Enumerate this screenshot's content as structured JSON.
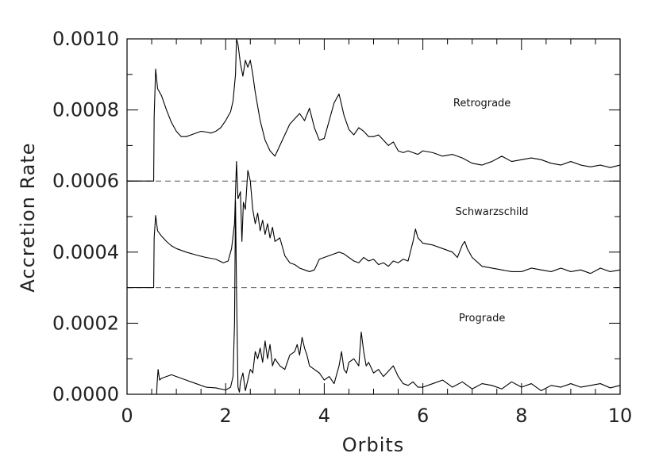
{
  "chart_data": {
    "type": "line",
    "title": "",
    "xlabel": "Orbits",
    "ylabel": "Accretion Rate",
    "xlim": [
      0,
      10
    ],
    "ylim": [
      0,
      0.001
    ],
    "x_ticks": [
      "0",
      "2",
      "4",
      "6",
      "8",
      "10"
    ],
    "y_ticks": [
      "0.0000",
      "0.0002",
      "0.0004",
      "0.0006",
      "0.0008",
      "0.0010"
    ],
    "grid": false,
    "legend": "none",
    "reference_lines": [
      {
        "y": 0.0006,
        "style": "dashed"
      },
      {
        "y": 0.0003,
        "style": "dashed"
      }
    ],
    "annotations": [
      {
        "text": "Retrograde",
        "x": 7.2,
        "y": 0.00081
      },
      {
        "text": "Schwarzschild",
        "x": 7.4,
        "y": 0.000505
      },
      {
        "text": "Prograde",
        "x": 7.2,
        "y": 0.000205
      }
    ],
    "series": [
      {
        "color": "#000000",
        "x": [
          0,
          0.54,
          0.55,
          0.58,
          0.62,
          0.7,
          0.8,
          0.9,
          1.0,
          1.1,
          1.2,
          1.3,
          1.4,
          1.5,
          1.6,
          1.7,
          1.8,
          1.9,
          2.0,
          2.1,
          2.15,
          2.2,
          2.22,
          2.25,
          2.3,
          2.35,
          2.4,
          2.45,
          2.5,
          2.55,
          2.6,
          2.7,
          2.8,
          2.9,
          3.0,
          3.1,
          3.2,
          3.3,
          3.4,
          3.5,
          3.6,
          3.7,
          3.8,
          3.9,
          4.0,
          4.1,
          4.2,
          4.3,
          4.4,
          4.5,
          4.6,
          4.7,
          4.8,
          4.9,
          5.0,
          5.1,
          5.2,
          5.3,
          5.4,
          5.5,
          5.6,
          5.7,
          5.8,
          5.9,
          6.0,
          6.2,
          6.4,
          6.6,
          6.8,
          7.0,
          7.2,
          7.4,
          7.6,
          7.8,
          8.0,
          8.2,
          8.4,
          8.6,
          8.8,
          9.0,
          9.2,
          9.4,
          9.6,
          9.8,
          10.0
        ],
        "y": [
          0.0006,
          0.0006,
          0.00078,
          0.000915,
          0.00086,
          0.00084,
          0.0008,
          0.000765,
          0.00074,
          0.000725,
          0.000725,
          0.00073,
          0.000735,
          0.00074,
          0.000738,
          0.000735,
          0.00074,
          0.00075,
          0.00077,
          0.000795,
          0.000825,
          0.0009,
          0.001,
          0.000985,
          0.00093,
          0.000895,
          0.00094,
          0.00092,
          0.00094,
          0.0009,
          0.00085,
          0.00077,
          0.000715,
          0.000685,
          0.00067,
          0.0007,
          0.00073,
          0.00076,
          0.000775,
          0.00079,
          0.00077,
          0.000805,
          0.00075,
          0.000715,
          0.00072,
          0.00077,
          0.00082,
          0.000845,
          0.000785,
          0.000745,
          0.00073,
          0.00075,
          0.00074,
          0.000725,
          0.000725,
          0.00073,
          0.000715,
          0.0007,
          0.00071,
          0.000685,
          0.00068,
          0.000685,
          0.00068,
          0.000675,
          0.000685,
          0.00068,
          0.00067,
          0.000675,
          0.000665,
          0.00065,
          0.000645,
          0.000655,
          0.00067,
          0.000655,
          0.00066,
          0.000665,
          0.00066,
          0.00065,
          0.000645,
          0.000655,
          0.000645,
          0.00064,
          0.000645,
          0.000638,
          0.000645
        ]
      },
      {
        "color": "#000000",
        "x": [
          0,
          0.54,
          0.55,
          0.58,
          0.62,
          0.7,
          0.8,
          0.9,
          1.0,
          1.2,
          1.4,
          1.6,
          1.8,
          1.95,
          2.05,
          2.12,
          2.18,
          2.22,
          2.25,
          2.3,
          2.33,
          2.36,
          2.4,
          2.45,
          2.5,
          2.55,
          2.6,
          2.65,
          2.7,
          2.75,
          2.8,
          2.85,
          2.9,
          2.95,
          3.0,
          3.1,
          3.2,
          3.3,
          3.4,
          3.5,
          3.6,
          3.7,
          3.8,
          3.9,
          4.0,
          4.1,
          4.2,
          4.3,
          4.4,
          4.5,
          4.6,
          4.7,
          4.8,
          4.9,
          5.0,
          5.1,
          5.2,
          5.3,
          5.4,
          5.5,
          5.6,
          5.7,
          5.8,
          5.85,
          5.9,
          6.0,
          6.2,
          6.4,
          6.6,
          6.7,
          6.8,
          6.85,
          6.9,
          7.0,
          7.2,
          7.4,
          7.6,
          7.8,
          8.0,
          8.2,
          8.4,
          8.6,
          8.8,
          9.0,
          9.2,
          9.4,
          9.6,
          9.8,
          10.0
        ],
        "y": [
          0.0003,
          0.0003,
          0.00044,
          0.000503,
          0.00046,
          0.000445,
          0.00043,
          0.000418,
          0.00041,
          0.0004,
          0.000392,
          0.000385,
          0.00038,
          0.00037,
          0.000375,
          0.00041,
          0.00048,
          0.000655,
          0.00055,
          0.00057,
          0.00043,
          0.00054,
          0.00052,
          0.00063,
          0.0006,
          0.00052,
          0.00048,
          0.00051,
          0.00046,
          0.00049,
          0.00045,
          0.00048,
          0.00044,
          0.00047,
          0.00043,
          0.00044,
          0.00039,
          0.00037,
          0.000365,
          0.000355,
          0.00035,
          0.000345,
          0.00035,
          0.00038,
          0.000385,
          0.00039,
          0.000395,
          0.0004,
          0.000395,
          0.000385,
          0.000375,
          0.00037,
          0.000385,
          0.000375,
          0.00038,
          0.000365,
          0.00037,
          0.00036,
          0.000375,
          0.00037,
          0.00038,
          0.000375,
          0.00043,
          0.000465,
          0.00044,
          0.000425,
          0.00042,
          0.00041,
          0.0004,
          0.000385,
          0.00042,
          0.00043,
          0.00041,
          0.000385,
          0.00036,
          0.000355,
          0.00035,
          0.000345,
          0.000345,
          0.000355,
          0.00035,
          0.000345,
          0.000355,
          0.000345,
          0.00035,
          0.00034,
          0.000355,
          0.000345,
          0.00035
        ]
      },
      {
        "color": "#000000",
        "x": [
          0,
          0.6,
          0.61,
          0.63,
          0.66,
          0.7,
          0.8,
          0.9,
          1.0,
          1.2,
          1.4,
          1.6,
          1.8,
          2.0,
          2.1,
          2.15,
          2.18,
          2.2,
          2.22,
          2.25,
          2.28,
          2.3,
          2.35,
          2.4,
          2.45,
          2.5,
          2.55,
          2.6,
          2.65,
          2.7,
          2.75,
          2.8,
          2.85,
          2.9,
          2.95,
          3.0,
          3.1,
          3.2,
          3.3,
          3.4,
          3.45,
          3.5,
          3.55,
          3.6,
          3.65,
          3.7,
          3.8,
          3.9,
          4.0,
          4.1,
          4.2,
          4.3,
          4.35,
          4.4,
          4.45,
          4.5,
          4.6,
          4.7,
          4.75,
          4.8,
          4.85,
          4.9,
          5.0,
          5.1,
          5.2,
          5.3,
          5.4,
          5.5,
          5.6,
          5.7,
          5.8,
          5.9,
          6.0,
          6.2,
          6.4,
          6.6,
          6.8,
          7.0,
          7.2,
          7.4,
          7.6,
          7.8,
          8.0,
          8.2,
          8.4,
          8.6,
          8.8,
          9.0,
          9.2,
          9.4,
          9.6,
          9.8,
          10.0
        ],
        "y": [
          0,
          0,
          3e-05,
          7e-05,
          4e-05,
          4.5e-05,
          5e-05,
          5.5e-05,
          5e-05,
          4e-05,
          3e-05,
          2e-05,
          1.8e-05,
          1.2e-05,
          2e-05,
          5e-05,
          0.0002,
          0.000545,
          0.0003,
          2e-05,
          6e-06,
          3.5e-05,
          6e-05,
          1e-05,
          4e-05,
          7e-05,
          6e-05,
          0.00012,
          0.0001,
          0.00013,
          9e-05,
          0.00015,
          0.0001,
          0.00014,
          8e-05,
          0.0001,
          8e-05,
          7e-05,
          0.00011,
          0.00012,
          0.00014,
          0.00011,
          0.00016,
          0.00013,
          0.00011,
          8e-05,
          7e-05,
          6e-05,
          4e-05,
          5e-05,
          3e-05,
          8e-05,
          0.00012,
          7e-05,
          6e-05,
          9e-05,
          0.0001,
          8e-05,
          0.000175,
          0.00012,
          8e-05,
          9e-05,
          6e-05,
          7e-05,
          5e-05,
          6.5e-05,
          8e-05,
          5e-05,
          3e-05,
          2.5e-05,
          3.5e-05,
          2e-05,
          2e-05,
          3e-05,
          4e-05,
          2e-05,
          3.5e-05,
          1.5e-05,
          3e-05,
          2.5e-05,
          1.5e-05,
          3.5e-05,
          2e-05,
          3e-05,
          1e-05,
          2.5e-05,
          2e-05,
          3e-05,
          2e-05,
          2.5e-05,
          3e-05,
          1.8e-05,
          2.5e-05
        ]
      }
    ]
  }
}
